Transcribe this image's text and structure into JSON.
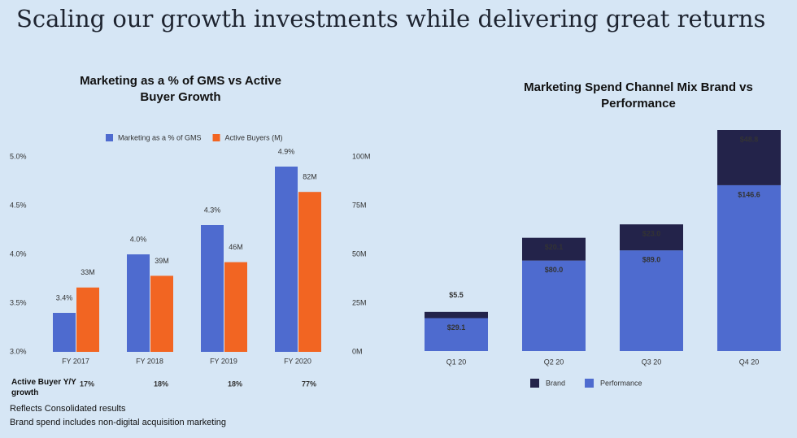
{
  "title": "Scaling our growth investments while delivering great returns",
  "notes": [
    "Reflects Consolidated results",
    "Brand spend includes non-digital acquisition marketing"
  ],
  "chart_data": [
    {
      "type": "grouped_bar_dual_axis",
      "title": "Marketing as a % of GMS vs Active Buyer Growth",
      "categories": [
        "FY 2017",
        "FY 2018",
        "FY 2019",
        "FY 2020"
      ],
      "series": [
        {
          "name": "Marketing as a % of GMS",
          "color": "#4e6bcf",
          "values": [
            3.4,
            4.0,
            4.3,
            4.9
          ],
          "value_labels": [
            "3.4%",
            "4.0%",
            "4.3%",
            "4.9%"
          ]
        },
        {
          "name": "Active Buyers (M)",
          "color": "#f26522",
          "axis": "y2",
          "values": [
            33,
            39,
            46,
            82
          ],
          "value_labels": [
            "33M",
            "39M",
            "46M",
            "82M"
          ]
        }
      ],
      "ylim": [
        3.0,
        5.0
      ],
      "yticks": [
        {
          "value": 3.0,
          "label": "3.0%"
        },
        {
          "value": 3.5,
          "label": "3.5%"
        },
        {
          "value": 4.0,
          "label": "4.0%"
        },
        {
          "value": 4.5,
          "label": "4.5%"
        },
        {
          "value": 5.0,
          "label": "5.0%"
        }
      ],
      "y2lim": [
        0,
        100
      ],
      "y2ticks": [
        {
          "value": 0,
          "label": "0M"
        },
        {
          "value": 25,
          "label": "25M"
        },
        {
          "value": 50,
          "label": "50M"
        },
        {
          "value": 75,
          "label": "75M"
        },
        {
          "value": 100,
          "label": "100M"
        }
      ],
      "legend": "top",
      "growth": {
        "label": "Active Buyer Y/Y growth",
        "values": [
          17,
          18,
          18,
          77
        ],
        "value_labels": [
          "17%",
          "18%",
          "18%",
          "77%"
        ]
      }
    },
    {
      "type": "stacked_bar",
      "title": "Marketing Spend Channel Mix Brand vs Performance",
      "categories": [
        "Q1 20",
        "Q2 20",
        "Q3 20",
        "Q4 20"
      ],
      "series": [
        {
          "name": "Performance",
          "color": "#4e6bcf",
          "values": [
            29.1,
            80.0,
            89.0,
            146.6
          ],
          "value_labels": [
            "$29.1",
            "$80.0",
            "$89.0",
            "$146.6"
          ]
        },
        {
          "name": "Brand",
          "color": "#23234a",
          "values": [
            5.5,
            20.1,
            23.0,
            48.8
          ],
          "value_labels": [
            "$5.5",
            "$20.1",
            "$23.0",
            "$48.8"
          ]
        }
      ],
      "legend": "bottom"
    }
  ]
}
